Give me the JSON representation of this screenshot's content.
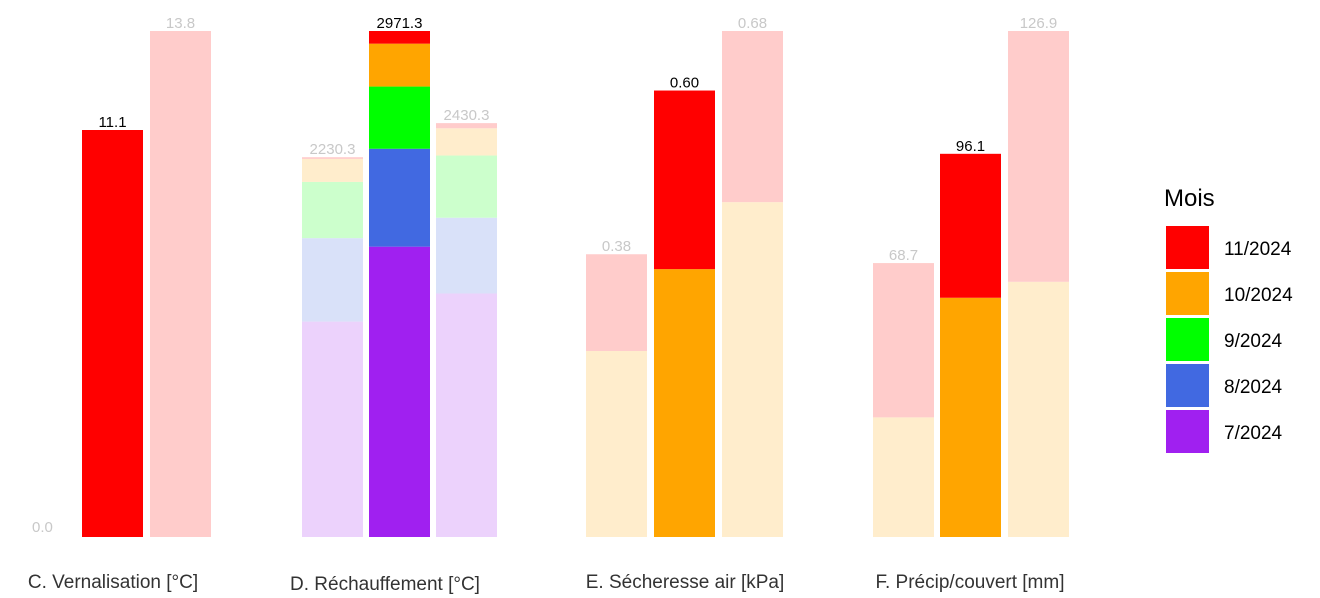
{
  "chart_data": {
    "type": "bar",
    "stacked": true,
    "grid": false,
    "legend": {
      "title": "Mois",
      "placement": "right",
      "entries": [
        {
          "label": "11/2024",
          "color": "#ff0000"
        },
        {
          "label": "10/2024",
          "color": "#ffa500"
        },
        {
          "label": "9/2024",
          "color": "#00ff00"
        },
        {
          "label": "8/2024",
          "color": "#4169e1"
        },
        {
          "label": "7/2024",
          "color": "#a020f0"
        }
      ]
    },
    "colors": {
      "11/2024": "#ff0000",
      "10/2024": "#ffa500",
      "9/2024": "#00ff00",
      "8/2024": "#4169e1",
      "7/2024": "#a020f0",
      "faded_label": "#c8c8c8",
      "label": "#000000"
    },
    "zero_label": "0.0",
    "panels": [
      {
        "title": "C. Vernalisation [°C]",
        "bars": [
          {
            "role": "current",
            "total_label": "11.1",
            "segments": [
              {
                "month": "11/2024",
                "value": 11.1
              }
            ]
          },
          {
            "role": "reference-high",
            "total_label": "13.8",
            "segments": [
              {
                "month": "11/2024",
                "value": 13.8
              }
            ]
          }
        ]
      },
      {
        "title": "D. Réchauffement [°C]",
        "bars": [
          {
            "role": "reference-low",
            "total_label": "2230.3",
            "segments": [
              {
                "month": "7/2024",
                "value": 1265
              },
              {
                "month": "8/2024",
                "value": 490
              },
              {
                "month": "9/2024",
                "value": 330
              },
              {
                "month": "10/2024",
                "value": 135
              },
              {
                "month": "11/2024",
                "value": 10.3
              }
            ]
          },
          {
            "role": "current",
            "total_label": "2971.3",
            "segments": [
              {
                "month": "7/2024",
                "value": 1705
              },
              {
                "month": "8/2024",
                "value": 575
              },
              {
                "month": "9/2024",
                "value": 365
              },
              {
                "month": "10/2024",
                "value": 252
              },
              {
                "month": "11/2024",
                "value": 74.3
              }
            ]
          },
          {
            "role": "reference-high",
            "total_label": "2430.3",
            "segments": [
              {
                "month": "7/2024",
                "value": 1430
              },
              {
                "month": "8/2024",
                "value": 445
              },
              {
                "month": "9/2024",
                "value": 365
              },
              {
                "month": "10/2024",
                "value": 160
              },
              {
                "month": "11/2024",
                "value": 30.3
              }
            ]
          }
        ]
      },
      {
        "title": "E. Sécheresse air [kPa]",
        "bars": [
          {
            "role": "reference-low",
            "total_label": "0.38",
            "segments": [
              {
                "month": "10/2024",
                "value": 0.25
              },
              {
                "month": "11/2024",
                "value": 0.13
              }
            ]
          },
          {
            "role": "current",
            "total_label": "0.60",
            "segments": [
              {
                "month": "10/2024",
                "value": 0.36
              },
              {
                "month": "11/2024",
                "value": 0.24
              }
            ]
          },
          {
            "role": "reference-high",
            "total_label": "0.68",
            "segments": [
              {
                "month": "10/2024",
                "value": 0.45
              },
              {
                "month": "11/2024",
                "value": 0.23
              }
            ]
          }
        ]
      },
      {
        "title": "F. Précip/couvert [mm]",
        "bars": [
          {
            "role": "reference-low",
            "total_label": "68.7",
            "segments": [
              {
                "month": "10/2024",
                "value": 30
              },
              {
                "month": "11/2024",
                "value": 38.7
              }
            ]
          },
          {
            "role": "current",
            "total_label": "96.1",
            "segments": [
              {
                "month": "10/2024",
                "value": 60
              },
              {
                "month": "11/2024",
                "value": 36.1
              }
            ]
          },
          {
            "role": "reference-high",
            "total_label": "126.9",
            "segments": [
              {
                "month": "10/2024",
                "value": 64
              },
              {
                "month": "11/2024",
                "value": 62.9
              }
            ]
          }
        ]
      }
    ]
  }
}
